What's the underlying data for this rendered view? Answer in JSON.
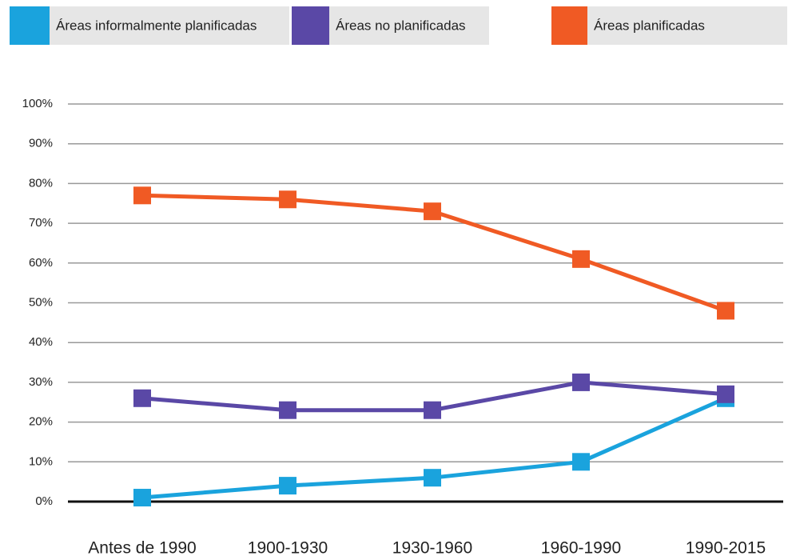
{
  "chart_data": {
    "type": "line",
    "categories": [
      "Antes de  1990",
      "1900-1930",
      "1930-1960",
      "1960-1990",
      "1990-2015"
    ],
    "series": [
      {
        "name": "Áreas informalmente planificadas",
        "color": "#1aa3dd",
        "values": [
          1,
          4,
          6,
          10,
          26
        ]
      },
      {
        "name": "Áreas no planificadas",
        "color": "#5a48a6",
        "values": [
          26,
          23,
          23,
          30,
          27
        ]
      },
      {
        "name": "Áreas planificadas",
        "color": "#f05a24",
        "values": [
          77,
          76,
          73,
          61,
          48
        ]
      }
    ],
    "ylim": [
      0,
      100
    ],
    "yticks": [
      {
        "value": 0,
        "label": "0%"
      },
      {
        "value": 10,
        "label": "10%"
      },
      {
        "value": 20,
        "label": "20%"
      },
      {
        "value": 30,
        "label": "30%"
      },
      {
        "value": 40,
        "label": "40%"
      },
      {
        "value": 50,
        "label": "50%"
      },
      {
        "value": 60,
        "label": "60%"
      },
      {
        "value": 70,
        "label": "70%"
      },
      {
        "value": 80,
        "label": "80%"
      },
      {
        "value": 90,
        "label": "90%"
      },
      {
        "value": 100,
        "label": "100%"
      }
    ],
    "grid": true
  }
}
